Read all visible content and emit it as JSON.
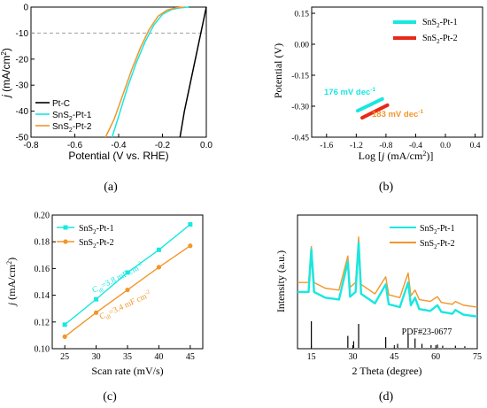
{
  "colors": {
    "black": "#000000",
    "cyan": "#17e8e0",
    "orange": "#f2962a",
    "red": "#e8281a",
    "dash": "#a0a0a0"
  },
  "chart_data": [
    {
      "panel": "a",
      "caption": "(a)",
      "type": "line",
      "xlabel": "Potential (V vs. RHE)",
      "ylabel_main": "j",
      "ylabel_unit": "(mA/cm",
      "xlim": [
        -0.8,
        0.0
      ],
      "ylim": [
        -50,
        0
      ],
      "xticks": [
        "-0.8",
        "-0.6",
        "-0.4",
        "-0.2",
        "0.0"
      ],
      "yticks": [
        "0",
        "-10",
        "-20",
        "-30",
        "-40",
        "-50"
      ],
      "reference_line_y": -10,
      "grid": false,
      "legend_position": "bottom-left",
      "series": [
        {
          "name_prefix": "Pt-C",
          "name_sub": "",
          "name_suffix": "",
          "color": "#000000",
          "x": [
            0.0,
            -0.02,
            -0.04,
            -0.06,
            -0.08,
            -0.1,
            -0.12
          ],
          "y": [
            0,
            -8,
            -16,
            -24,
            -32,
            -40,
            -50
          ]
        },
        {
          "name_prefix": "SnS",
          "name_sub": "2",
          "name_suffix": "-Pt-1",
          "color": "#17e8e0",
          "x": [
            -0.08,
            -0.12,
            -0.16,
            -0.2,
            -0.24,
            -0.28,
            -0.32,
            -0.36,
            -0.4,
            -0.43
          ],
          "y": [
            0,
            -0.3,
            -1.0,
            -2.8,
            -7.0,
            -13.5,
            -21.5,
            -31.0,
            -42.0,
            -50
          ]
        },
        {
          "name_prefix": "SnS",
          "name_sub": "2",
          "name_suffix": "-Pt-2",
          "color": "#f2962a",
          "x": [
            -0.1,
            -0.14,
            -0.18,
            -0.22,
            -0.26,
            -0.3,
            -0.34,
            -0.38,
            -0.42,
            -0.46
          ],
          "y": [
            0,
            -0.3,
            -1.2,
            -3.5,
            -8.5,
            -15.5,
            -24.0,
            -33.5,
            -43.0,
            -50
          ]
        }
      ]
    },
    {
      "panel": "b",
      "caption": "(b)",
      "type": "line",
      "xlabel_prefix": "Log [",
      "xlabel_j": "j",
      "xlabel_suffix": " (mA/cm",
      "xlabel_end": ")]",
      "ylabel": "Potential (V)",
      "xlim": [
        -1.8,
        0.5
      ],
      "ylim": [
        -0.45,
        0.18
      ],
      "xticks": [
        "-1.6",
        "-1.2",
        "-0.8",
        "-0.4",
        "0.0",
        "0.4"
      ],
      "yticks": [
        "0.15",
        "0.00",
        "-0.15",
        "-0.30",
        "-0.45"
      ],
      "legend_position": "top-right",
      "series": [
        {
          "name_prefix": "SnS",
          "name_sub": "2",
          "name_suffix": "-Pt-1",
          "color": "#17e8e0",
          "x": [
            -1.18,
            -0.85
          ],
          "y": [
            -0.322,
            -0.265
          ],
          "annotation": "176 mV dec",
          "annotation_sup": "-1"
        },
        {
          "name_prefix": "SnS",
          "name_sub": "2",
          "name_suffix": "-Pt-2",
          "color": "#e8281a",
          "x": [
            -1.12,
            -0.78
          ],
          "y": [
            -0.356,
            -0.295
          ],
          "annotation": "183 mV dec",
          "annotation_sup": "-1"
        }
      ]
    },
    {
      "panel": "c",
      "caption": "(c)",
      "type": "scatter",
      "xlabel": "Scan rate (mV/s)",
      "ylabel_main": "j",
      "ylabel_unit": "(mA/cm",
      "xlim": [
        23,
        47
      ],
      "ylim": [
        0.1,
        0.2
      ],
      "xticks": [
        "25",
        "30",
        "35",
        "40",
        "45"
      ],
      "yticks": [
        "0.10",
        "0.12",
        "0.14",
        "0.16",
        "0.18",
        "0.20"
      ],
      "legend_position": "top-left",
      "series": [
        {
          "name_prefix": "SnS",
          "name_sub": "2",
          "name_suffix": "-Pt-1",
          "color": "#17e8e0",
          "marker": "square",
          "x": [
            25,
            30,
            35,
            40,
            45
          ],
          "y": [
            0.118,
            0.137,
            0.157,
            0.174,
            0.193
          ],
          "annotation_c": "C",
          "annotation_dl": "dl",
          "annotation_val": "=3.8 mF cm",
          "annotation_sup": "-2"
        },
        {
          "name_prefix": "SnS",
          "name_sub": "2",
          "name_suffix": "-Pt-2",
          "color": "#f2962a",
          "marker": "circle",
          "x": [
            25,
            30,
            35,
            40,
            45
          ],
          "y": [
            0.109,
            0.127,
            0.144,
            0.161,
            0.177
          ],
          "annotation_c": "C",
          "annotation_dl": "dl",
          "annotation_val": "=3.4 mF cm",
          "annotation_sup": "-2"
        }
      ]
    },
    {
      "panel": "d",
      "caption": "(d)",
      "type": "line",
      "xlabel": "2 Theta (degree)",
      "ylabel": "Intensity (a.u.)",
      "xlim": [
        10,
        75
      ],
      "xticks": [
        "15",
        "30",
        "45",
        "60",
        "75"
      ],
      "reference_label": "PDF#23-0677",
      "legend_position": "top-right",
      "reference_peaks": [
        {
          "x": 15.0,
          "h": 1.0
        },
        {
          "x": 28.2,
          "h": 0.45
        },
        {
          "x": 30.3,
          "h": 0.25
        },
        {
          "x": 32.1,
          "h": 0.9
        },
        {
          "x": 41.9,
          "h": 0.4
        },
        {
          "x": 46.2,
          "h": 0.15
        },
        {
          "x": 50.0,
          "h": 0.5
        },
        {
          "x": 52.5,
          "h": 0.35
        },
        {
          "x": 55.0,
          "h": 0.15
        },
        {
          "x": 58.3,
          "h": 0.1
        },
        {
          "x": 60.6,
          "h": 0.12
        },
        {
          "x": 62.5,
          "h": 0.08
        },
        {
          "x": 67.1,
          "h": 0.08
        },
        {
          "x": 70.5,
          "h": 0.06
        }
      ],
      "series": [
        {
          "name_prefix": "SnS",
          "name_sub": "2",
          "name_suffix": "-Pt-1",
          "color": "#17e8e0",
          "x": [
            10,
            14,
            15,
            16,
            20,
            25,
            28.2,
            29,
            31,
            32.1,
            33,
            38,
            41.9,
            43,
            47,
            50,
            51,
            52.5,
            54,
            58,
            60.6,
            62,
            66,
            67.1,
            70,
            75
          ],
          "y": [
            0.3,
            0.3,
            0.75,
            0.3,
            0.24,
            0.22,
            0.62,
            0.25,
            0.3,
            0.82,
            0.28,
            0.18,
            0.38,
            0.17,
            0.14,
            0.4,
            0.16,
            0.24,
            0.12,
            0.1,
            0.16,
            0.09,
            0.07,
            0.11,
            0.06,
            0.04
          ]
        },
        {
          "name_prefix": "SnS",
          "name_sub": "2",
          "name_suffix": "-Pt-2",
          "color": "#f2962a",
          "x": [
            10,
            14,
            15,
            16,
            20,
            25,
            28.2,
            29,
            31,
            32.1,
            33,
            38,
            41.9,
            43,
            47,
            50,
            51,
            52.5,
            54,
            58,
            60.6,
            62,
            66,
            67.1,
            70,
            75
          ],
          "y": [
            0.4,
            0.4,
            0.78,
            0.4,
            0.34,
            0.32,
            0.68,
            0.35,
            0.4,
            0.88,
            0.38,
            0.28,
            0.46,
            0.27,
            0.24,
            0.5,
            0.26,
            0.32,
            0.22,
            0.2,
            0.25,
            0.19,
            0.17,
            0.2,
            0.16,
            0.14
          ]
        }
      ]
    }
  ]
}
